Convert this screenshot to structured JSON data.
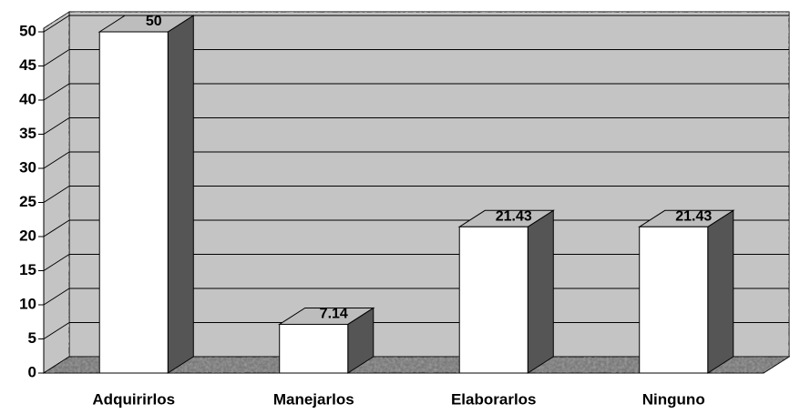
{
  "chart_data": {
    "type": "bar3d",
    "categories": [
      "Adquirirlos",
      "Manejarlos",
      "Elaborarlos",
      "Ninguno"
    ],
    "values": [
      50,
      7.14,
      21.43,
      21.43
    ],
    "color": "#ffffff",
    "ylim": [
      0,
      50
    ],
    "yticks": [
      0,
      5,
      10,
      15,
      20,
      25,
      30,
      35,
      40,
      45,
      50
    ],
    "grid": true
  }
}
